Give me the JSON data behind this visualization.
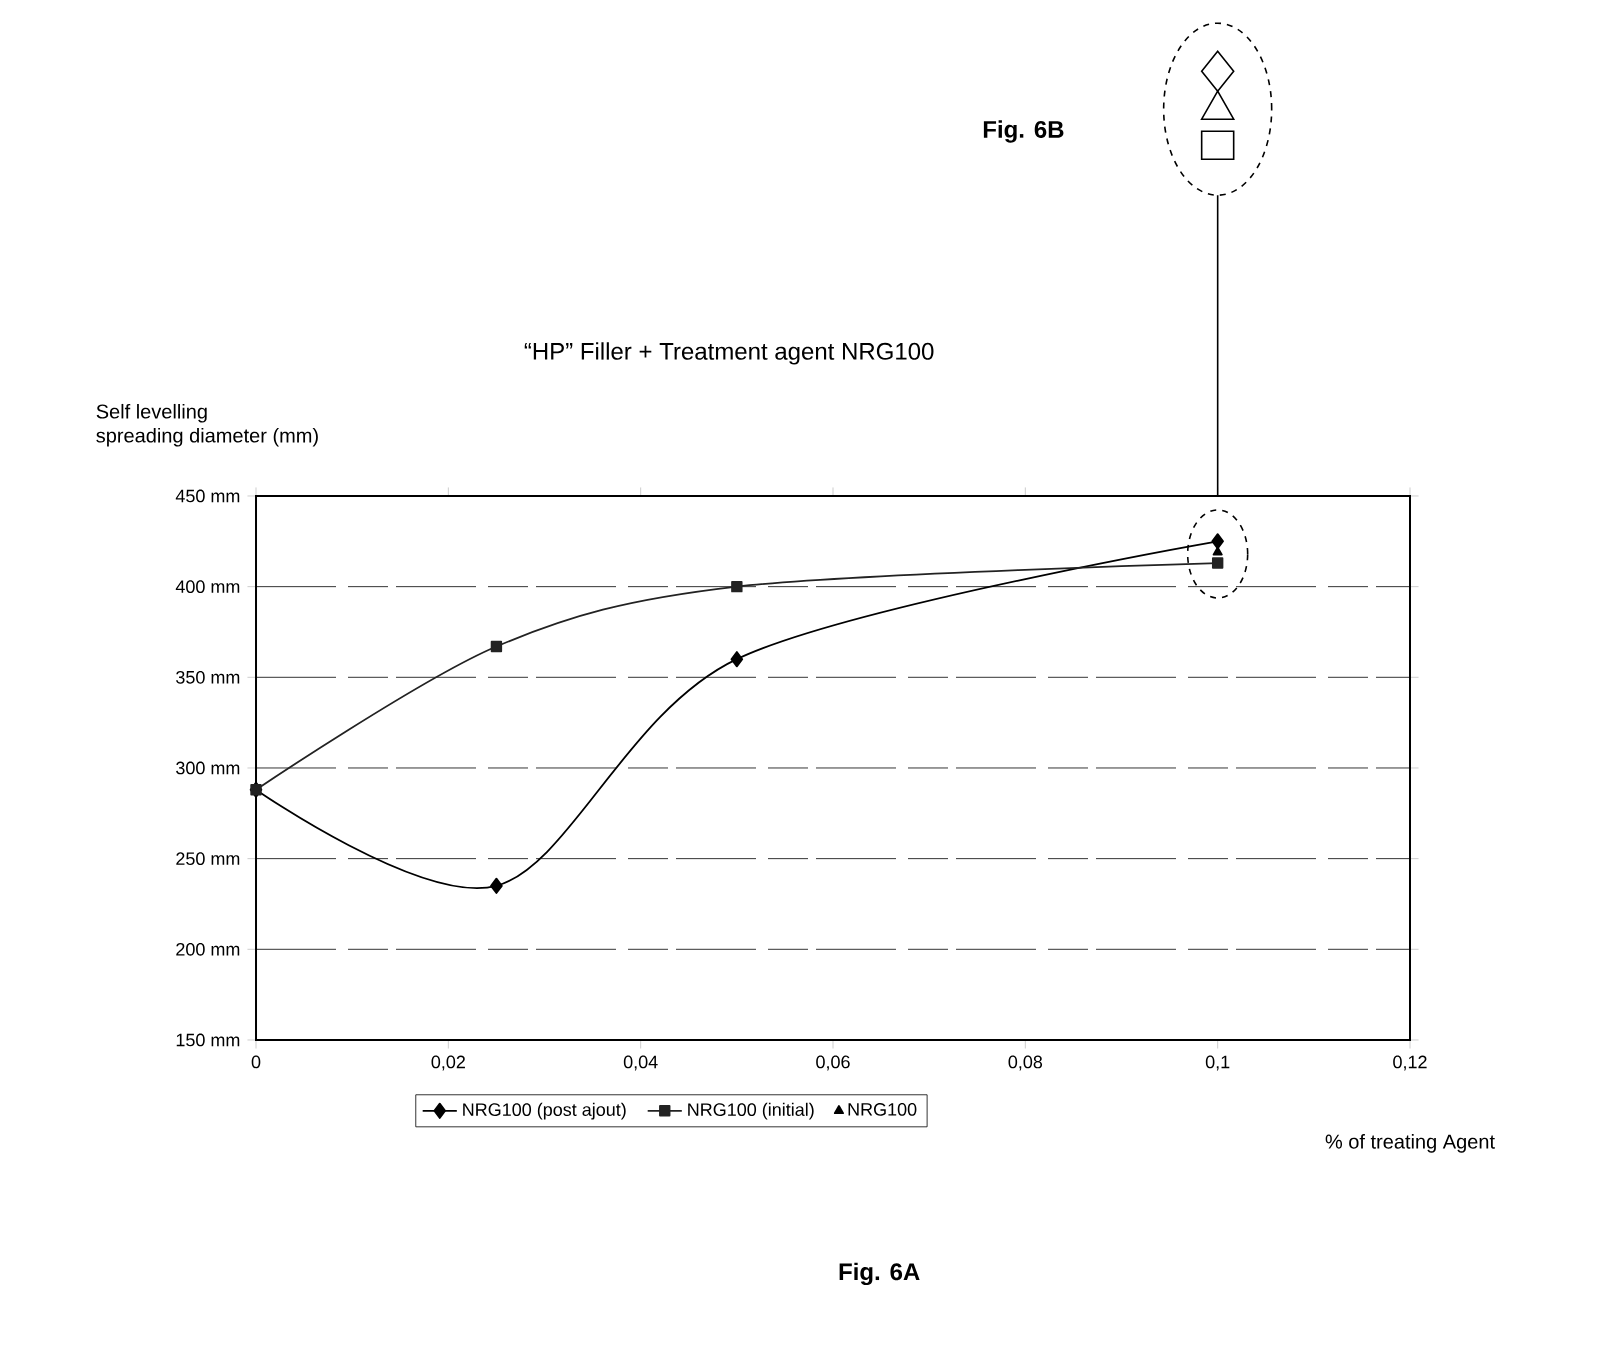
{
  "chart_data": {
    "type": "line",
    "title": "“HP” Filler + Treatment agent NRG100",
    "ylabel": "Self levelling\nspreading diameter  (mm)",
    "xlabel": "% of treating Agent",
    "annotations": [
      "Fig. 6B",
      "Fig. 6A"
    ],
    "xlim": [
      0,
      0.12
    ],
    "ylim": [
      150,
      450
    ],
    "xticks": [
      0,
      {
        "value": 0.02,
        "label": "0,02"
      },
      {
        "value": 0.04,
        "label": "0,04"
      },
      {
        "value": 0.06,
        "label": "0,06"
      },
      {
        "value": 0.08,
        "label": "0,08"
      },
      {
        "value": 0.1,
        "label": "0,1"
      },
      {
        "value": 0.12,
        "label": "0,12"
      }
    ],
    "yticks": [
      {
        "value": 150,
        "label": "150 mm"
      },
      {
        "value": 200,
        "label": "200 mm"
      },
      {
        "value": 250,
        "label": "250 mm"
      },
      {
        "value": 300,
        "label": "300 mm"
      },
      {
        "value": 350,
        "label": "350 mm"
      },
      {
        "value": 400,
        "label": "400 mm"
      },
      {
        "value": 450,
        "label": "450 mm"
      }
    ],
    "grid": "y",
    "legend": "bottom",
    "line_style": "solid",
    "series": [
      {
        "name": "NRG100 (post ajout)",
        "color": "#000000",
        "marker": "diamond",
        "x": [
          0,
          0.025,
          0.05,
          0.1
        ],
        "values": [
          288,
          235,
          360,
          425
        ]
      },
      {
        "name": "NRG100 (initial)",
        "color": "#222222",
        "marker": "square",
        "x": [
          0,
          0.025,
          0.05,
          0.1
        ],
        "values": [
          288,
          367,
          400,
          413
        ]
      },
      {
        "name": "NRG100",
        "color": "#000000",
        "marker": "triangle",
        "type": "scatter",
        "x": [
          0.1
        ],
        "values": [
          419
        ]
      }
    ]
  }
}
